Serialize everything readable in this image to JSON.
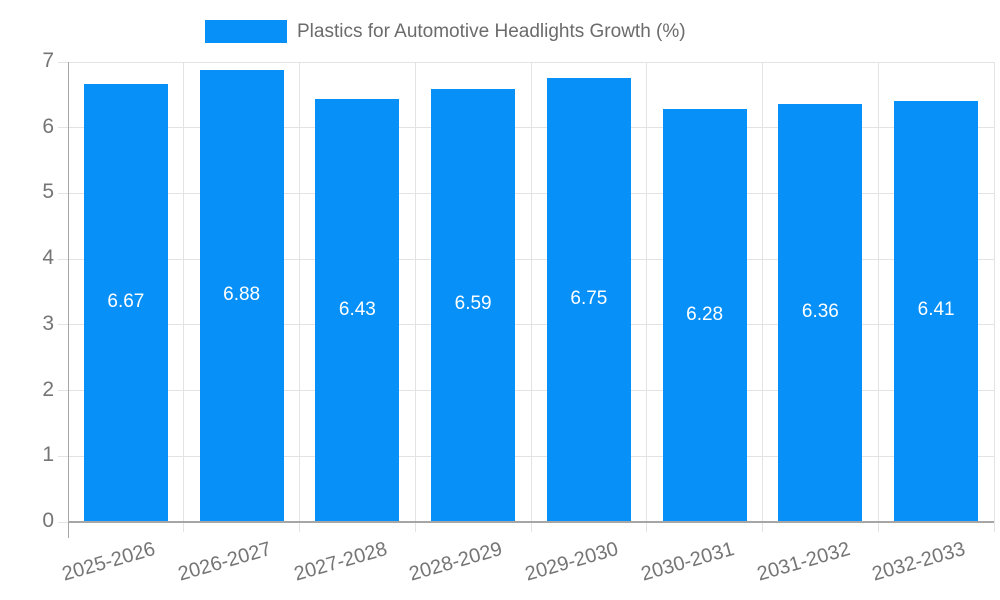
{
  "chart_data": {
    "type": "bar",
    "title": "Plastics for Automotive Headlights Growth (%)",
    "categories": [
      "2025-2026",
      "2026-2027",
      "2027-2028",
      "2028-2029",
      "2029-2030",
      "2030-2031",
      "2031-2032",
      "2032-2033"
    ],
    "values": [
      6.67,
      6.88,
      6.43,
      6.59,
      6.75,
      6.28,
      6.36,
      6.41
    ],
    "value_labels": [
      "6.67",
      "6.88",
      "6.43",
      "6.59",
      "6.75",
      "6.28",
      "6.36",
      "6.41"
    ],
    "xlabel": "",
    "ylabel": "",
    "ylim": [
      0,
      7
    ],
    "y_ticks": [
      "0",
      "1",
      "2",
      "3",
      "4",
      "5",
      "6",
      "7"
    ],
    "grid": "on",
    "legend_position": "top",
    "colors": {
      "bar": "#0690F8",
      "grid": "#e3e3e3",
      "axis_line": "#a6a6a6",
      "tick_label": "#757575",
      "legend_text": "#6b6b6b",
      "value_label": "#ffffff",
      "background": "#ffffff"
    }
  }
}
